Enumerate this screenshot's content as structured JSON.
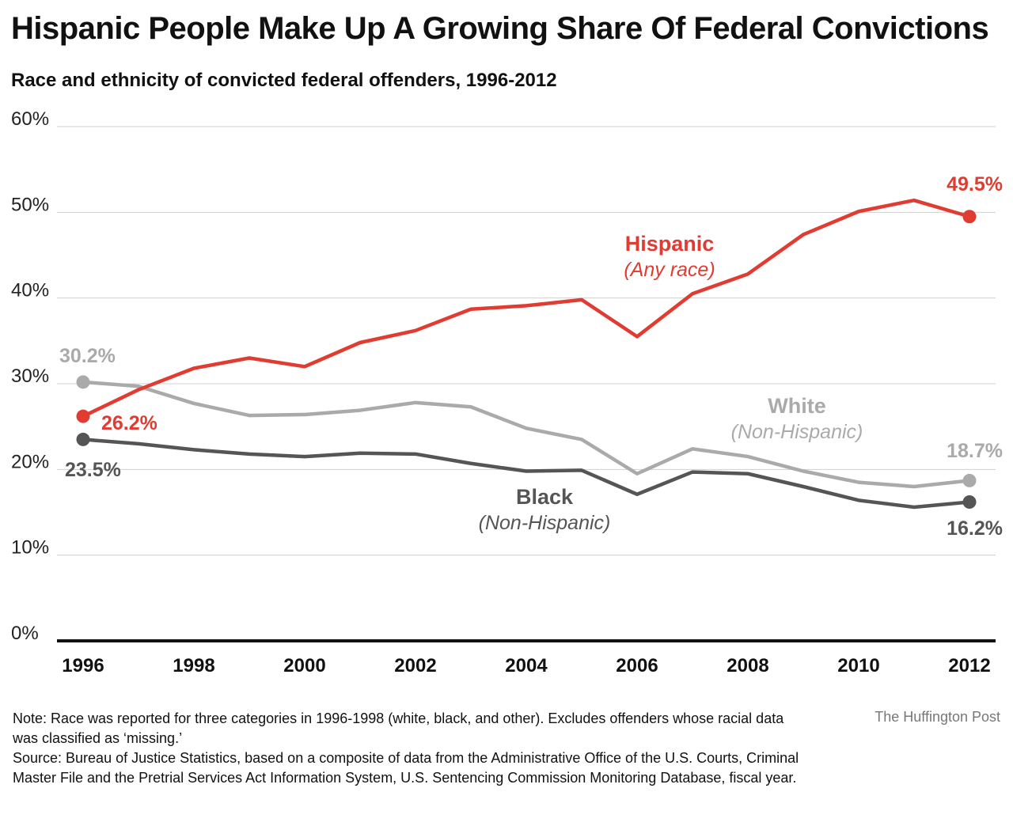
{
  "title": "Hispanic People Make Up A Growing Share Of Federal Convictions",
  "subtitle": "Race and ethnicity of convicted federal offenders, 1996-2012",
  "note": "Note: Race was reported for three categories in 1996-1998 (white, black, and other). Excludes offenders whose racial data was classified as ‘missing.’",
  "source": "Source: Bureau of Justice Statistics, based on a composite of data from the Administrative Office of the U.S. Courts, Criminal Master File and the Pretrial Services Act Information System, U.S. Sentencing Commission Monitoring Database, fiscal year.",
  "credit": "The Huffington Post",
  "chart_data": {
    "type": "line",
    "x": [
      1996,
      1997,
      1998,
      1999,
      2000,
      2001,
      2002,
      2003,
      2004,
      2005,
      2006,
      2007,
      2008,
      2009,
      2010,
      2011,
      2012
    ],
    "xticks": [
      "1996",
      "1998",
      "2000",
      "2002",
      "2004",
      "2006",
      "2008",
      "2010",
      "2012"
    ],
    "yticks": [
      "0%",
      "10%",
      "20%",
      "30%",
      "40%",
      "50%",
      "60%"
    ],
    "ylim": [
      0,
      60
    ],
    "grid": true,
    "series": [
      {
        "name": "Hispanic",
        "qualifier": "(Any race)",
        "color": "#e03c31",
        "values": [
          26.2,
          29.3,
          31.8,
          33.0,
          32.0,
          34.8,
          36.2,
          38.7,
          39.1,
          39.8,
          35.5,
          40.5,
          42.8,
          47.4,
          50.1,
          51.4,
          49.5
        ],
        "start_label": "26.2%",
        "end_label": "49.5%"
      },
      {
        "name": "White",
        "qualifier": "(Non-Hispanic)",
        "color": "#aaaaab",
        "values": [
          30.2,
          29.7,
          27.7,
          26.3,
          26.4,
          26.9,
          27.8,
          27.3,
          24.8,
          23.5,
          19.5,
          22.4,
          21.5,
          19.8,
          18.5,
          18.0,
          18.7
        ],
        "start_label": "30.2%",
        "end_label": "18.7%"
      },
      {
        "name": "Black",
        "qualifier": "(Non-Hispanic)",
        "color": "#555555",
        "values": [
          23.5,
          23.0,
          22.3,
          21.8,
          21.5,
          21.9,
          21.8,
          20.7,
          19.8,
          19.9,
          17.1,
          19.7,
          19.5,
          18.0,
          16.4,
          15.6,
          16.2
        ],
        "start_label": "23.5%",
        "end_label": "16.2%"
      }
    ]
  }
}
